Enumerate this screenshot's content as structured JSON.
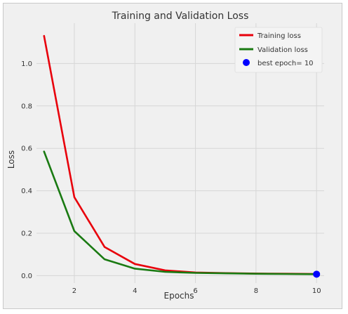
{
  "chart_data": {
    "type": "line",
    "title": "Training and Validation Loss",
    "xlabel": "Epochs",
    "ylabel": "Loss",
    "xlim": [
      0.75,
      10.25
    ],
    "ylim": [
      -0.035,
      1.19
    ],
    "x_ticks": [
      2,
      4,
      6,
      8,
      10
    ],
    "y_ticks": [
      0.0,
      0.2,
      0.4,
      0.6,
      0.8,
      1.0
    ],
    "y_tick_labels": [
      "0.0",
      "0.2",
      "0.4",
      "0.6",
      "0.8",
      "1.0"
    ],
    "grid": true,
    "legend_position": "top-right",
    "x": [
      1,
      2,
      3,
      4,
      5,
      6,
      7,
      8,
      9,
      10
    ],
    "series": [
      {
        "name": "Training loss",
        "color": "#e8000b",
        "values": [
          1.13,
          0.37,
          0.135,
          0.055,
          0.025,
          0.015,
          0.012,
          0.01,
          0.009,
          0.008
        ]
      },
      {
        "name": "Validation loss",
        "color": "#1a7a12",
        "values": [
          0.585,
          0.21,
          0.077,
          0.033,
          0.018,
          0.013,
          0.011,
          0.009,
          0.008,
          0.007
        ]
      }
    ],
    "best_epoch": {
      "label": "best epoch= 10",
      "x": 10,
      "y": 0.007,
      "color": "#0000ff"
    }
  }
}
